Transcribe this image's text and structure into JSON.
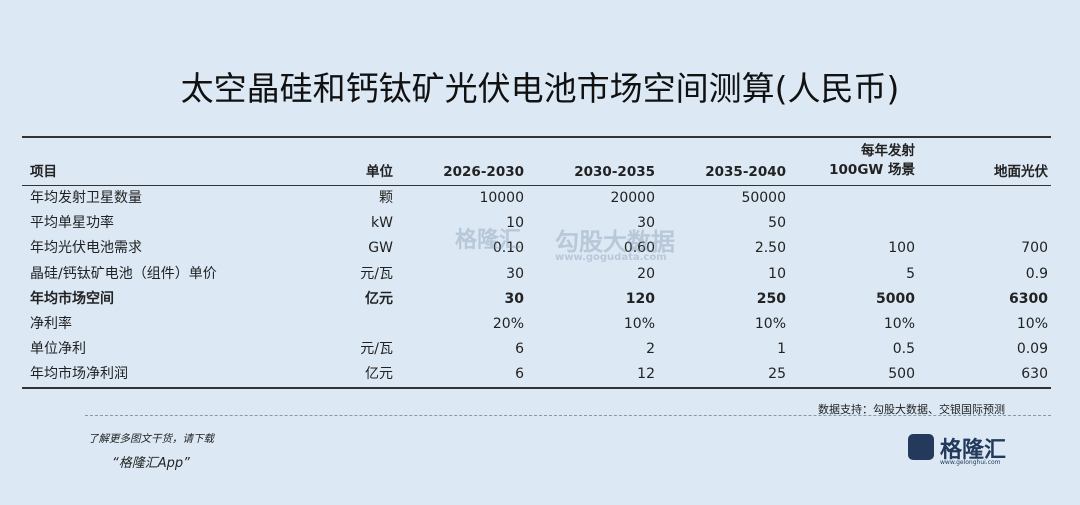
{
  "title": "太空晶硅和钙钛矿光伏电池市场空间测算(人民币)",
  "table": {
    "header": [
      "项目",
      "单位",
      "2026-2030",
      "2030-2035",
      "2035-2040",
      [
        "每年发射",
        "100GW 场景"
      ],
      "地面光伏"
    ],
    "rows": [
      [
        "年均发射卫星数量",
        "颗",
        "10000",
        "20000",
        "50000",
        null,
        null
      ],
      [
        "平均单星功率",
        "kW",
        "10",
        "30",
        "50",
        null,
        null
      ],
      [
        "年均光伏电池需求",
        "GW",
        "0.10",
        "0.60",
        "2.50",
        "100",
        "700"
      ],
      [
        "晶硅/钙钛矿电池（组件）单价",
        "元/瓦",
        "30",
        "20",
        "10",
        "5",
        "0.9"
      ],
      [
        "年均市场空间",
        "亿元",
        "30",
        "120",
        "250",
        "5000",
        "6300"
      ],
      [
        "净利率",
        null,
        "20%",
        "10%",
        "10%",
        "10%",
        "10%"
      ],
      [
        "单位净利",
        "元/瓦",
        "6",
        "2",
        "1",
        "0.5",
        "0.09"
      ],
      [
        "年均市场净利润",
        "亿元",
        "6",
        "12",
        "25",
        "500",
        "630"
      ]
    ]
  },
  "watermark": {
    "brand": "格隆汇",
    "data_brand": "勾股大数据",
    "url": "www.gogudata.com"
  },
  "source": "数据支持：勾股大数据、交银国际预测",
  "footer": {
    "note": "了解更多图文干货，请下载",
    "app": "“格隆汇App”",
    "logo": "格隆汇",
    "logo_url": "www.gelonghui.com"
  }
}
